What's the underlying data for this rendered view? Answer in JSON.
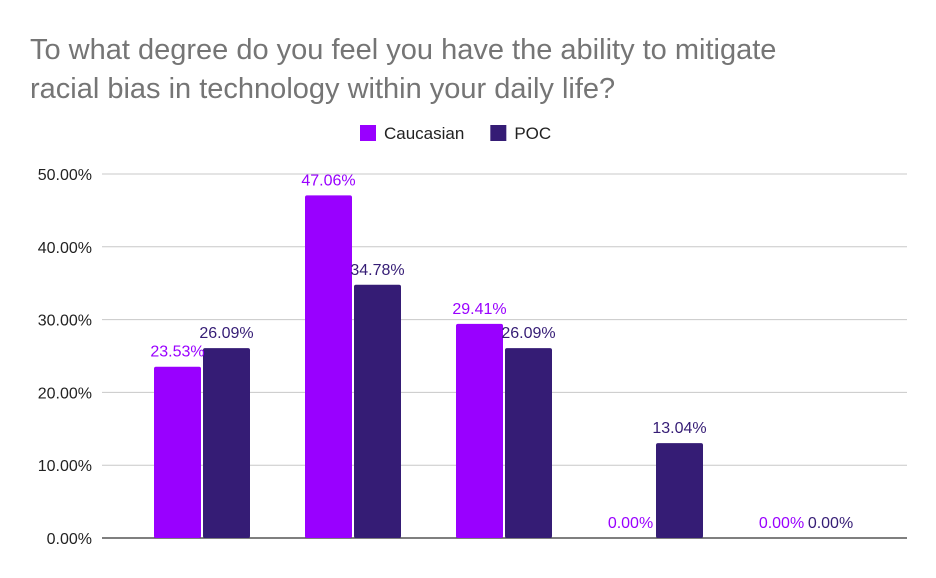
{
  "chart_data": {
    "type": "bar",
    "title_lines": [
      "To what degree do you feel you have the ability to mitigate",
      "racial bias in technology within your daily life?"
    ],
    "categories": [
      "",
      "",
      "",
      "",
      ""
    ],
    "series": [
      {
        "name": "Caucasian",
        "color": "#9900ff",
        "values": [
          23.53,
          47.06,
          29.41,
          0.0,
          0.0
        ],
        "labels": [
          "23.53%",
          "47.06%",
          "29.41%",
          "0.00%",
          "0.00%"
        ]
      },
      {
        "name": "POC",
        "color": "#351c75",
        "values": [
          26.09,
          34.78,
          26.09,
          13.04,
          0.0
        ],
        "labels": [
          "26.09%",
          "34.78%",
          "26.09%",
          "13.04%",
          "0.00%"
        ]
      }
    ],
    "ylim": [
      0,
      50
    ],
    "yticks": [
      0,
      10,
      20,
      30,
      40,
      50
    ],
    "ytick_labels": [
      "0.00%",
      "10.00%",
      "20.00%",
      "30.00%",
      "40.00%",
      "50.00%"
    ],
    "grid": true,
    "legend_position": "top-center"
  }
}
